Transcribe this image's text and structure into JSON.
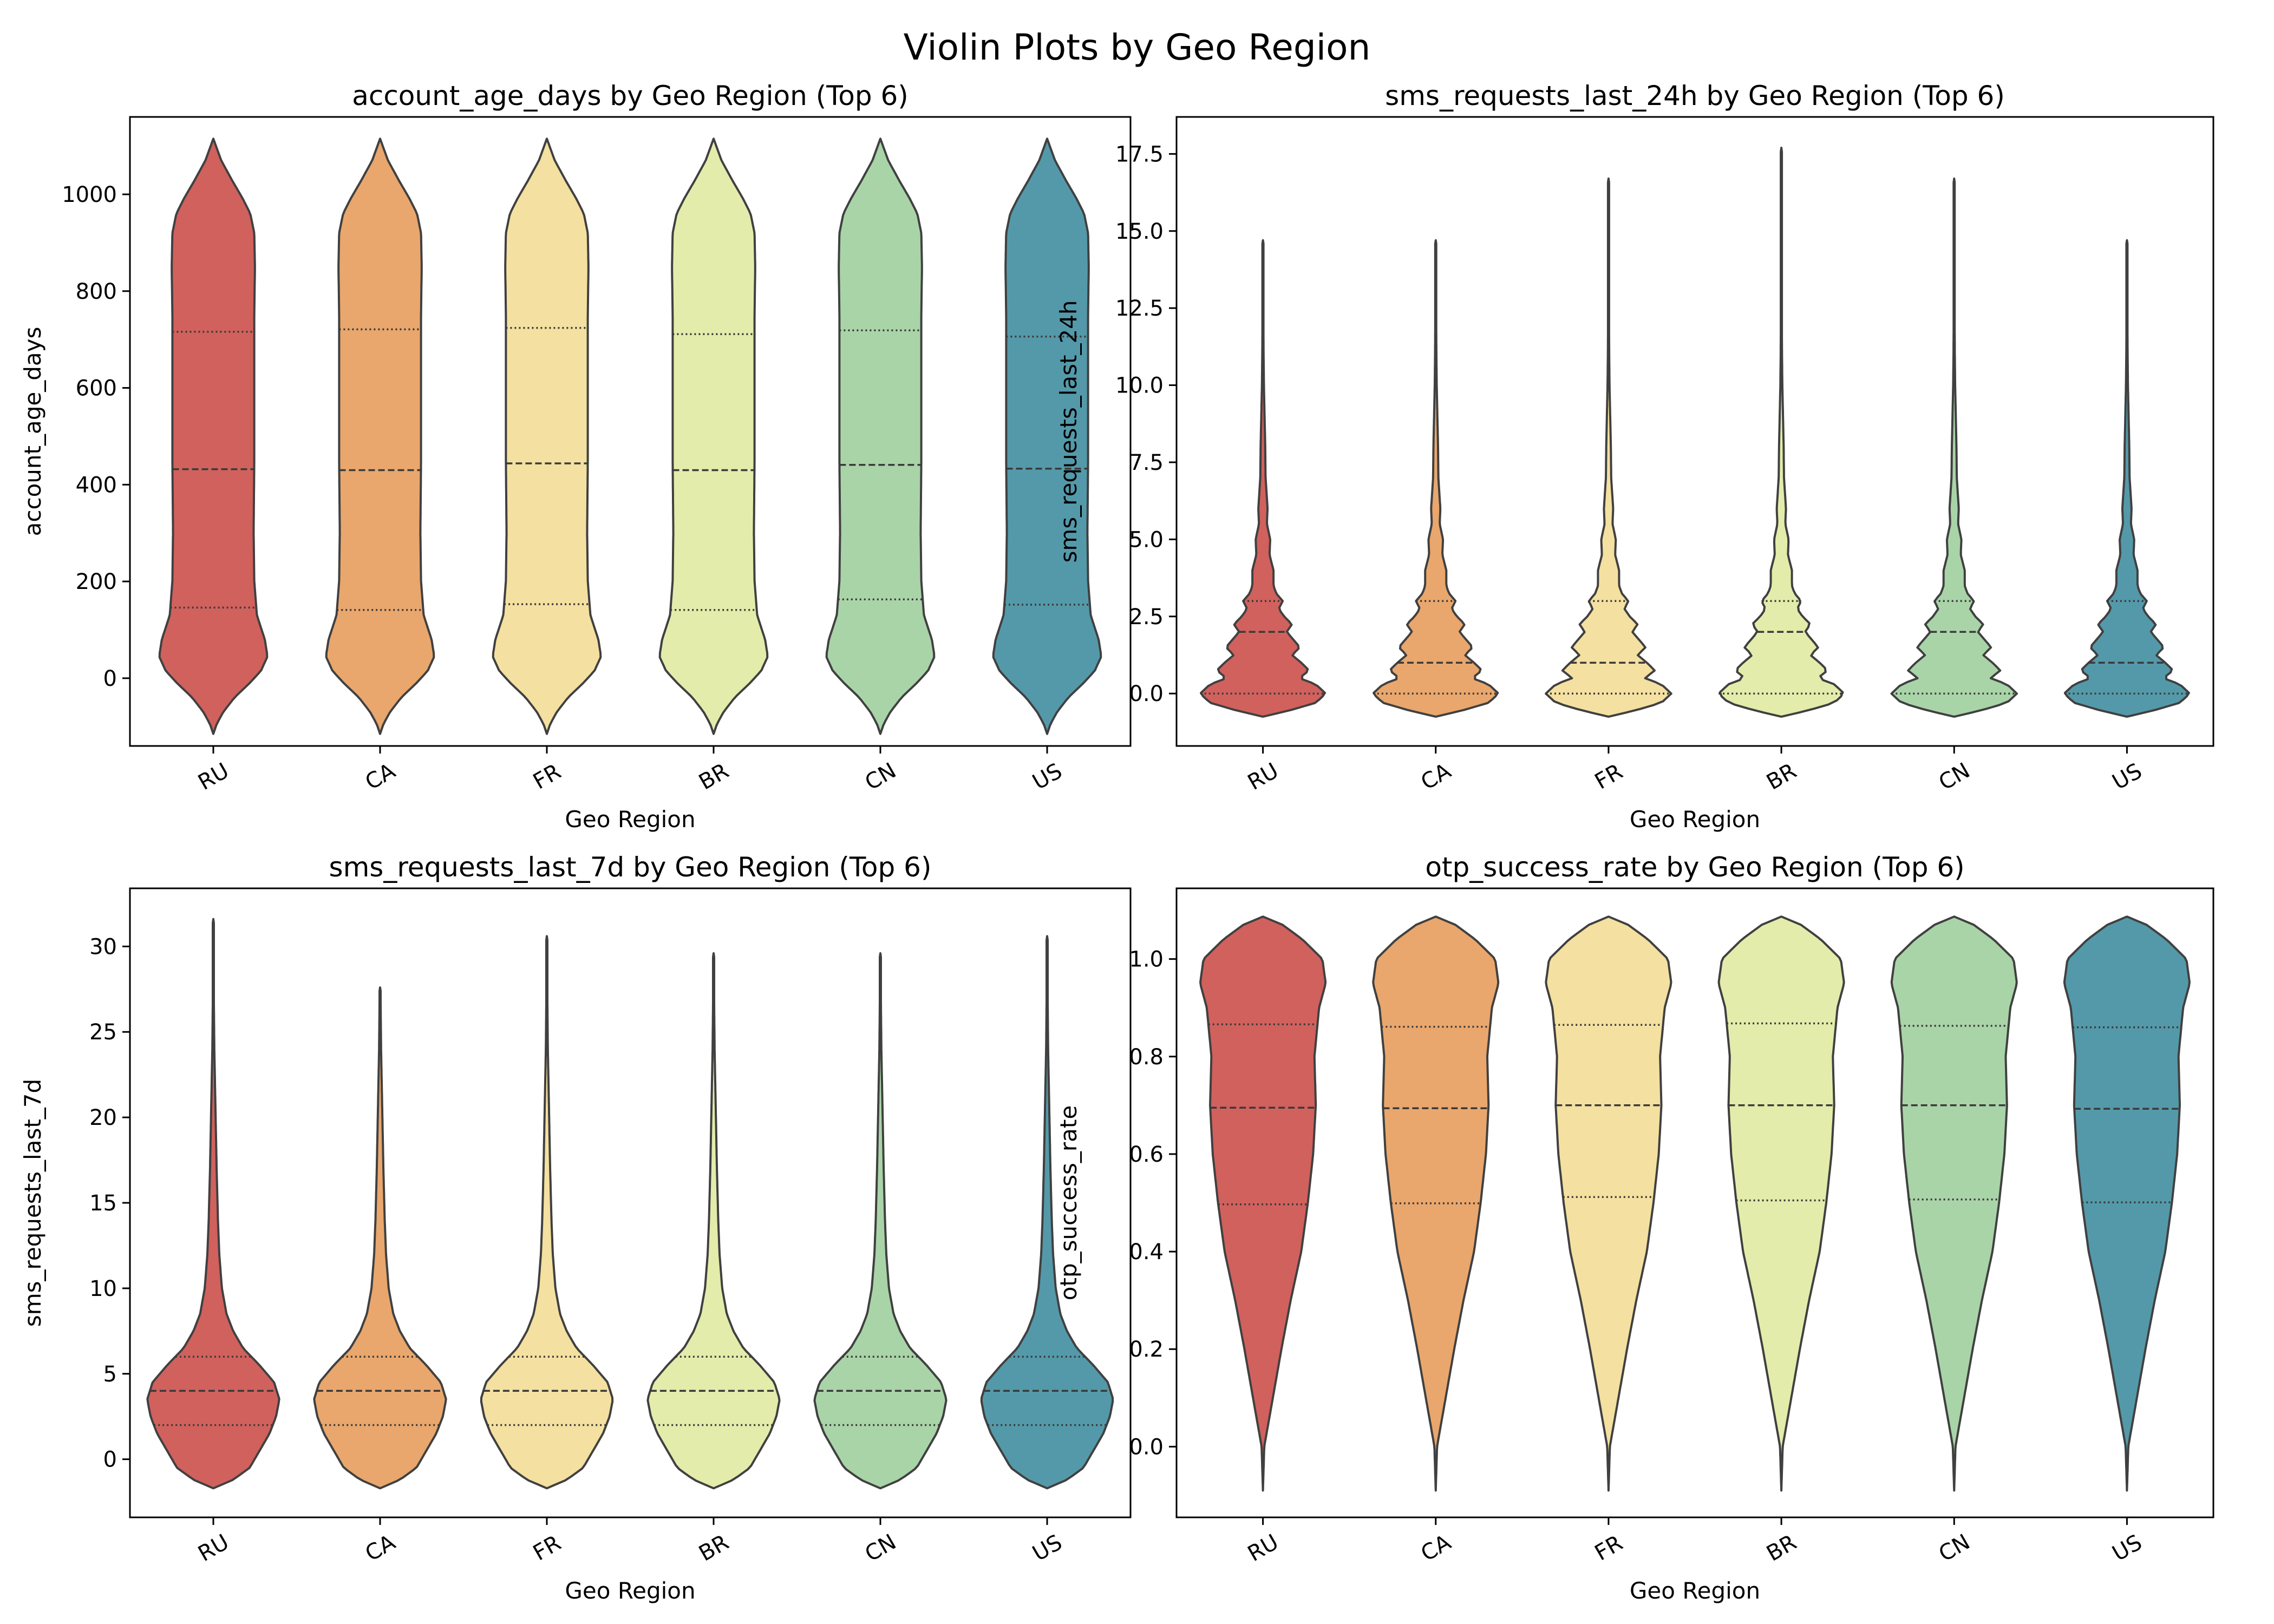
{
  "figure": {
    "title": "Violin Plots by Geo Region"
  },
  "chart_data": [
    {
      "type": "violin",
      "title": "account_age_days by Geo Region (Top 6)",
      "xlabel": "Geo Region",
      "ylabel": "account_age_days",
      "categories": [
        "RU",
        "CA",
        "FR",
        "BR",
        "CN",
        "US"
      ],
      "colors": [
        "#d1615d",
        "#e9a76d",
        "#f4e0a0",
        "#e3ecaa",
        "#a9d4a8",
        "#5499a9"
      ],
      "ylim": [
        -140,
        1160
      ],
      "yticks": [
        0,
        200,
        400,
        600,
        800,
        1000
      ],
      "ytick_labels": [
        "0",
        "200",
        "400",
        "600",
        "800",
        "1000"
      ],
      "range": [
        -115,
        1115
      ],
      "quartiles": [
        [
          146,
          432,
          716
        ],
        [
          141,
          430,
          721
        ],
        [
          153,
          444,
          724
        ],
        [
          141,
          430,
          711
        ],
        [
          163,
          441,
          719
        ],
        [
          152,
          433,
          706
        ]
      ],
      "shape": {
        "y": [
          -115,
          -95,
          -70,
          -40,
          -10,
          15,
          45,
          80,
          130,
          200,
          300,
          450,
          600,
          750,
          850,
          920,
          960,
          990,
          1030,
          1070,
          1115
        ],
        "w": [
          0,
          0.05,
          0.15,
          0.32,
          0.55,
          0.72,
          0.82,
          0.78,
          0.66,
          0.62,
          0.61,
          0.62,
          0.62,
          0.62,
          0.63,
          0.62,
          0.56,
          0.45,
          0.28,
          0.12,
          0
        ]
      }
    },
    {
      "type": "violin",
      "title": "sms_requests_last_24h by Geo Region (Top 6)",
      "xlabel": "Geo Region",
      "ylabel": "sms_requests_last_24h",
      "categories": [
        "RU",
        "CA",
        "FR",
        "BR",
        "CN",
        "US"
      ],
      "colors": [
        "#d1615d",
        "#e9a76d",
        "#f4e0a0",
        "#e3ecaa",
        "#a9d4a8",
        "#5499a9"
      ],
      "ylim": [
        -1.7,
        18.7
      ],
      "yticks": [
        0,
        2.5,
        5,
        7.5,
        10,
        12.5,
        15,
        17.5
      ],
      "ytick_labels": [
        "0.0",
        "2.5",
        "5.0",
        "7.5",
        "10.0",
        "12.5",
        "15.0",
        "17.5"
      ],
      "range_max": [
        14.7,
        14.7,
        16.7,
        17.7,
        16.7,
        14.7
      ],
      "quartiles": [
        [
          0,
          2,
          3
        ],
        [
          0,
          1,
          3
        ],
        [
          0,
          1,
          3
        ],
        [
          0,
          2,
          3
        ],
        [
          0,
          2,
          3
        ],
        [
          0,
          1,
          3
        ]
      ],
      "shape": {
        "y": [
          -0.75,
          -0.55,
          -0.3,
          0,
          0.3,
          0.5,
          0.75,
          1.0,
          1.25,
          1.5,
          1.75,
          2.0,
          2.25,
          2.5,
          2.75,
          3.0,
          3.25,
          3.5,
          4.0,
          4.5,
          5.0,
          5.5,
          6.0,
          7.0,
          8.0,
          9.0,
          10.0,
          11.0,
          12.5,
          14.0
        ],
        "w": [
          0,
          0.4,
          0.8,
          0.95,
          0.8,
          0.55,
          0.7,
          0.58,
          0.44,
          0.56,
          0.46,
          0.36,
          0.44,
          0.32,
          0.24,
          0.3,
          0.2,
          0.16,
          0.16,
          0.1,
          0.11,
          0.06,
          0.07,
          0.04,
          0.035,
          0.025,
          0.015,
          0.01,
          0.006,
          0.004
        ]
      }
    },
    {
      "type": "violin",
      "title": "sms_requests_last_7d by Geo Region (Top 6)",
      "xlabel": "Geo Region",
      "ylabel": "sms_requests_last_7d",
      "categories": [
        "RU",
        "CA",
        "FR",
        "BR",
        "CN",
        "US"
      ],
      "colors": [
        "#d1615d",
        "#e9a76d",
        "#f4e0a0",
        "#e3ecaa",
        "#a9d4a8",
        "#5499a9"
      ],
      "ylim": [
        -3.4,
        33.4
      ],
      "yticks": [
        0,
        5,
        10,
        15,
        20,
        25,
        30
      ],
      "ytick_labels": [
        "0",
        "5",
        "10",
        "15",
        "20",
        "25",
        "30"
      ],
      "range_max": [
        31.6,
        27.6,
        30.6,
        29.6,
        29.6,
        30.6
      ],
      "quartiles": [
        [
          2,
          4,
          6
        ],
        [
          2,
          4,
          6
        ],
        [
          2,
          4,
          6
        ],
        [
          2,
          4,
          6
        ],
        [
          2,
          4,
          6
        ],
        [
          2,
          4,
          6
        ]
      ],
      "shape": {
        "y": [
          -1.7,
          -1.2,
          -0.5,
          0.5,
          1.5,
          2.5,
          3.5,
          4.5,
          5.5,
          6.5,
          7.5,
          8.5,
          10,
          12,
          14,
          17,
          20,
          24,
          28
        ],
        "w": [
          0,
          0.3,
          0.55,
          0.7,
          0.85,
          0.95,
          1.0,
          0.92,
          0.7,
          0.45,
          0.3,
          0.2,
          0.13,
          0.09,
          0.07,
          0.05,
          0.035,
          0.015,
          0.005
        ]
      }
    },
    {
      "type": "violin",
      "title": "otp_success_rate by Geo Region (Top 6)",
      "xlabel": "Geo Region",
      "ylabel": "otp_success_rate",
      "categories": [
        "RU",
        "CA",
        "FR",
        "BR",
        "CN",
        "US"
      ],
      "colors": [
        "#d1615d",
        "#e9a76d",
        "#f4e0a0",
        "#e3ecaa",
        "#a9d4a8",
        "#5499a9"
      ],
      "ylim": [
        -0.145,
        1.145
      ],
      "yticks": [
        0,
        0.2,
        0.4,
        0.6,
        0.8,
        1.0
      ],
      "ytick_labels": [
        "0.0",
        "0.2",
        "0.4",
        "0.6",
        "0.8",
        "1.0"
      ],
      "range": [
        -0.09,
        1.087
      ],
      "quartiles": [
        [
          0.497,
          0.695,
          0.866
        ],
        [
          0.499,
          0.694,
          0.861
        ],
        [
          0.512,
          0.7,
          0.865
        ],
        [
          0.505,
          0.7,
          0.868
        ],
        [
          0.507,
          0.7,
          0.863
        ],
        [
          0.501,
          0.693,
          0.86
        ]
      ],
      "shape": {
        "y": [
          -0.09,
          0.0,
          0.1,
          0.2,
          0.3,
          0.4,
          0.5,
          0.6,
          0.7,
          0.8,
          0.9,
          0.95,
          1.0,
          1.04,
          1.07,
          1.087
        ],
        "w": [
          0,
          0.02,
          0.15,
          0.28,
          0.42,
          0.58,
          0.68,
          0.76,
          0.8,
          0.78,
          0.85,
          0.95,
          0.9,
          0.6,
          0.3,
          0
        ]
      }
    }
  ]
}
